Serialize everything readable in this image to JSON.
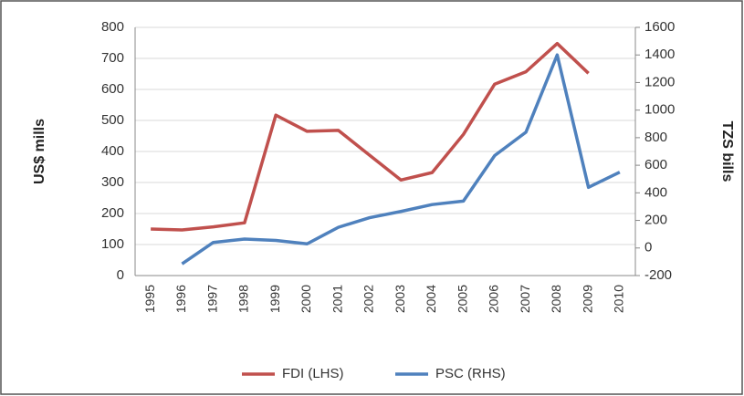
{
  "chart_data": {
    "type": "line",
    "categories": [
      "1995",
      "1996",
      "1997",
      "1998",
      "1999",
      "2000",
      "2001",
      "2002",
      "2003",
      "2004",
      "2005",
      "2006",
      "2007",
      "2008",
      "2009",
      "2010"
    ],
    "ylabel": "US$ mills",
    "y2label": "TZS bills",
    "ylim": [
      0,
      800
    ],
    "yticks": [
      0,
      100,
      200,
      300,
      400,
      500,
      600,
      700,
      800
    ],
    "y2lim": [
      -200,
      1600
    ],
    "y2ticks": [
      -200,
      0,
      200,
      400,
      600,
      800,
      1000,
      1200,
      1400,
      1600
    ],
    "grid": true,
    "legend": "bottom",
    "series": [
      {
        "name": "FDI (LHS)",
        "color": "#c0504d",
        "values": [
          150,
          147,
          157,
          170,
          517,
          465,
          468,
          388,
          308,
          332,
          455,
          617,
          657,
          748,
          652,
          null
        ]
      },
      {
        "name": "PSC (RHS)",
        "color": "#4f81bd",
        "axis": "y2",
        "values": [
          null,
          -115,
          40,
          65,
          55,
          30,
          150,
          220,
          265,
          315,
          340,
          670,
          840,
          1400,
          440,
          550
        ]
      }
    ]
  }
}
